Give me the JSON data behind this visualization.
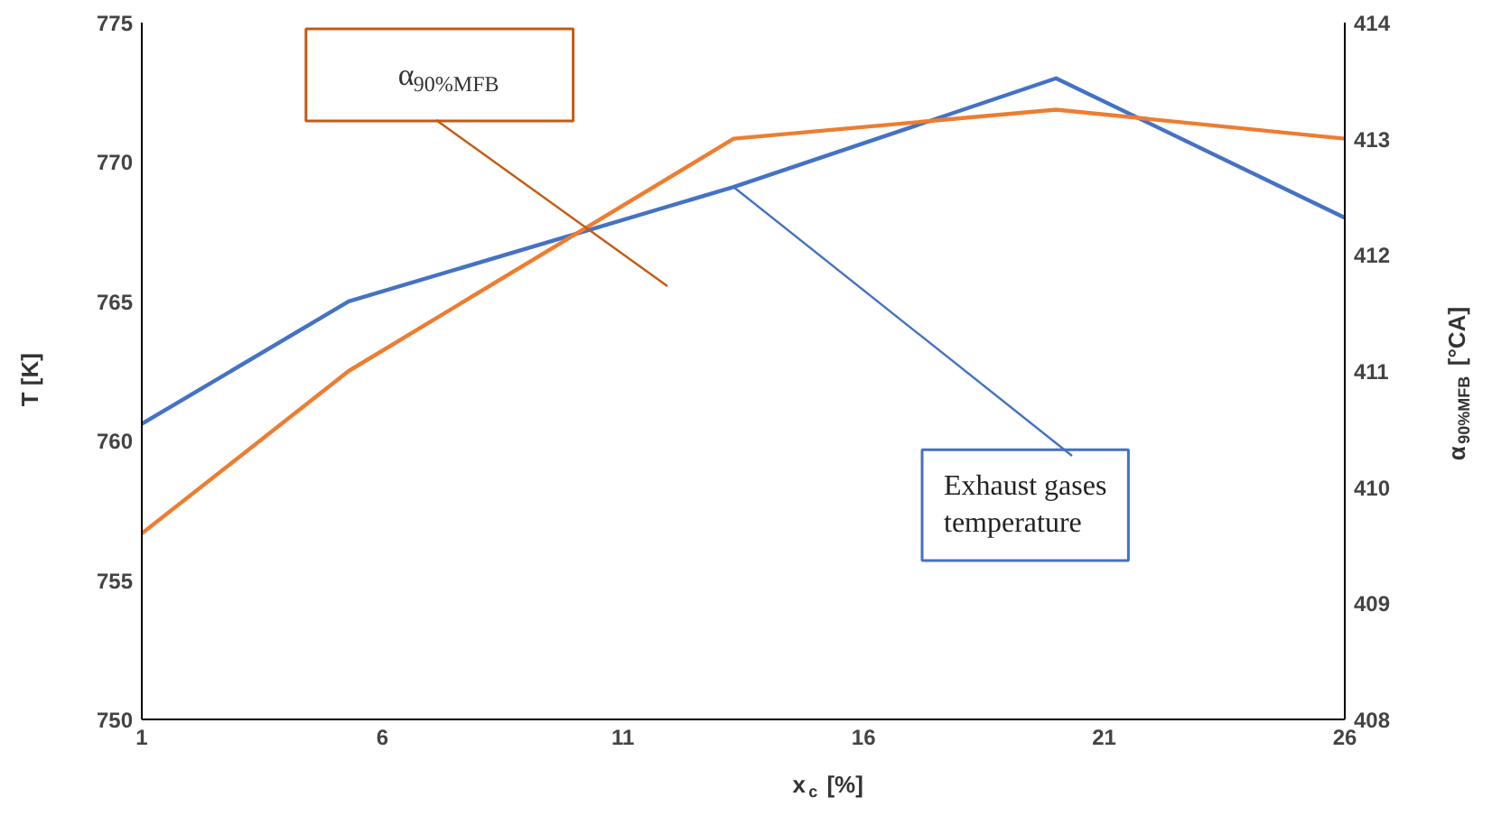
{
  "chart_data": {
    "type": "line",
    "xlabel": "x$_{c}$ [%]",
    "ylabel": "T [K]",
    "y2label": "α$_{90%MFB}$ [°CA]",
    "xlim": [
      1,
      26
    ],
    "xticks": [
      1,
      6,
      11,
      16,
      21,
      26
    ],
    "ylim": [
      750,
      775
    ],
    "yticks": [
      750,
      755,
      760,
      765,
      770,
      775
    ],
    "y2lim": [
      408,
      414
    ],
    "y2ticks": [
      408,
      409,
      410,
      411,
      412,
      413,
      414
    ],
    "grid": false,
    "marker": "none",
    "line_style": "solid",
    "annotations": [
      "α$_{90%MFB}$",
      {
        "text": "Exhaust gases temperature",
        "x": 13.3,
        "y": 769.1
      }
    ],
    "series": [
      {
        "color": "#4472c4",
        "x": [
          1,
          5.3,
          13.3,
          20,
          26
        ],
        "values": [
          760.6,
          765.0,
          769.1,
          773.0,
          768.0
        ]
      },
      {
        "color": "#ed7d31",
        "axis": "y2",
        "x": [
          1,
          5.3,
          13.3,
          20,
          26
        ],
        "values": [
          409.6,
          411.0,
          413.0,
          413.25,
          413.0
        ]
      }
    ]
  }
}
